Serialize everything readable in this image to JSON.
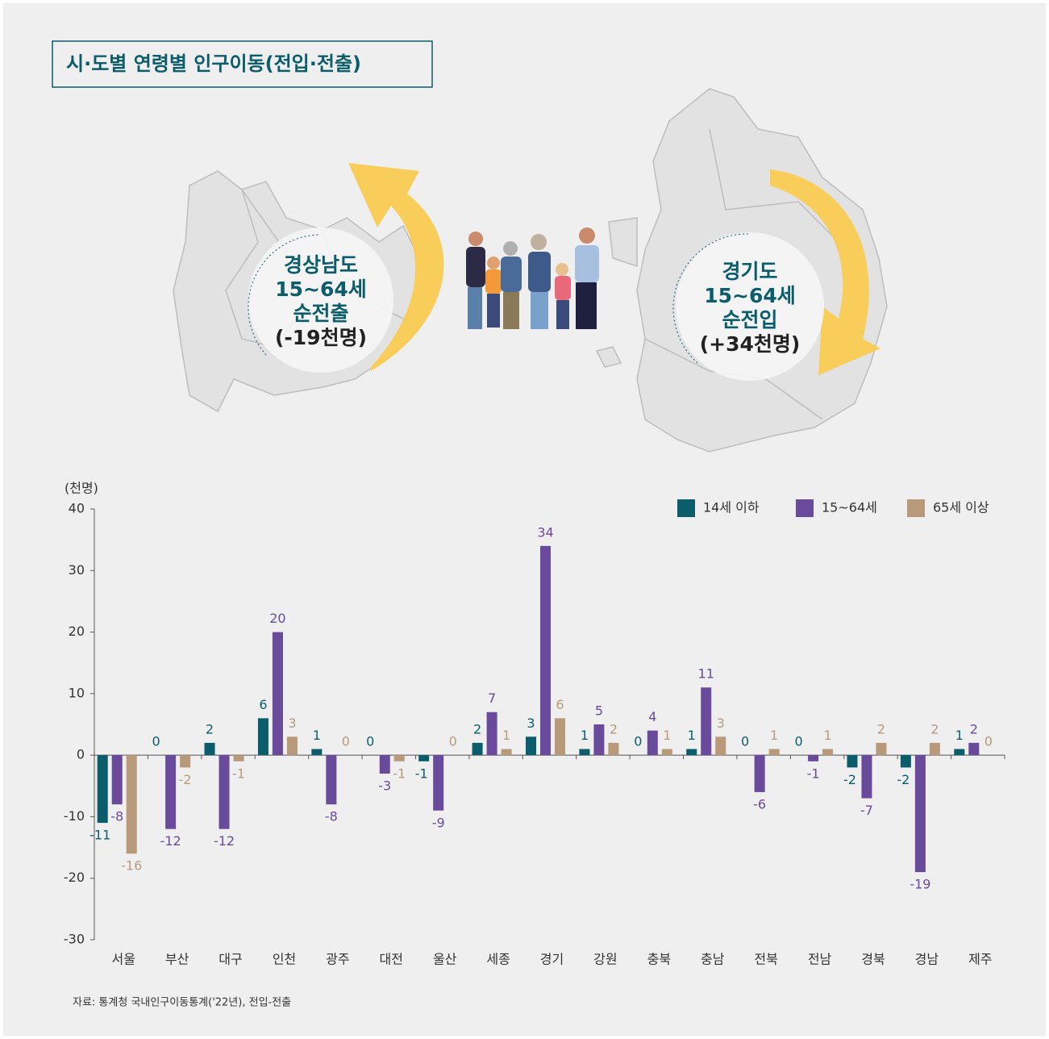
{
  "chart_data": {
    "type": "bar",
    "title": "시·도별 연령별 인구이동(전입·전출)",
    "y_label": "(천명)",
    "source": "자료: 통계청 국내인구이동통계('22년), 전입-전출",
    "categories": [
      "서울",
      "부산",
      "대구",
      "인천",
      "광주",
      "대전",
      "울산",
      "세종",
      "경기",
      "강원",
      "충북",
      "충남",
      "전북",
      "전남",
      "경북",
      "경남",
      "제주"
    ],
    "series": [
      {
        "name": "14세 이하",
        "color": "#0b5d6b",
        "values": [
          -11,
          0,
          2,
          6,
          1,
          0,
          -1,
          2,
          3,
          1,
          0,
          1,
          0,
          0,
          -2,
          -2,
          1
        ]
      },
      {
        "name": "15~64세",
        "color": "#6a4a9a",
        "values": [
          -8,
          -12,
          -12,
          20,
          -8,
          -3,
          -9,
          7,
          34,
          5,
          4,
          11,
          -6,
          -1,
          -7,
          -19,
          2
        ]
      },
      {
        "name": "65세 이상",
        "color": "#b89a7a",
        "values": [
          -16,
          -2,
          -1,
          3,
          0,
          -1,
          0,
          1,
          6,
          2,
          1,
          3,
          1,
          1,
          2,
          2,
          0
        ]
      }
    ],
    "ylim": [
      -30,
      40
    ],
    "yticks": [
      -30,
      -20,
      -10,
      0,
      10,
      20,
      30,
      40
    ],
    "legend": "top-right",
    "callouts": [
      {
        "lines": [
          "경상남도",
          "15~64세",
          "순전출",
          "(-19천명)"
        ]
      },
      {
        "lines": [
          "경기도",
          "15~64세",
          "순전입",
          "(+34천명)"
        ]
      }
    ]
  }
}
